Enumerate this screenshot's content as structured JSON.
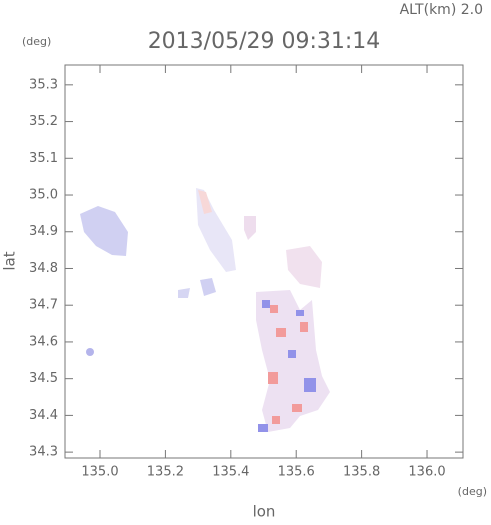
{
  "chart_data": {
    "type": "map",
    "title": "2013/05/29 09:31:14",
    "subtitle": "ALT(km) 2.0",
    "x_label": "lon",
    "y_label": "lat",
    "x_unit": "(deg)",
    "y_unit": "(deg)",
    "xlim": [
      134.893,
      136.11
    ],
    "ylim": [
      34.284,
      35.354
    ],
    "xticks": [
      {
        "value": 135,
        "label": "135.0"
      },
      135.2,
      135.4,
      135.6,
      135.8,
      {
        "value": 136,
        "label": "136.0"
      }
    ],
    "yticks": [
      34.3,
      34.4,
      34.5,
      34.6,
      34.7,
      34.8,
      34.9,
      {
        "value": 35,
        "label": "35.0"
      },
      35.1,
      35.2,
      35.3
    ]
  }
}
